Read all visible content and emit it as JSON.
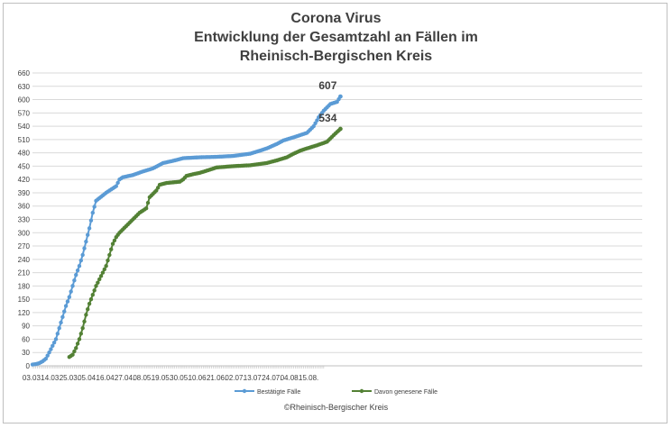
{
  "chart_data": {
    "type": "line",
    "title_lines": [
      "Corona Virus",
      "Entwicklung der Gesamtzahl an Fällen im",
      "Rheinisch-Bergischen Kreis"
    ],
    "y_ticks": [
      0,
      30,
      60,
      90,
      120,
      150,
      180,
      210,
      240,
      270,
      300,
      330,
      360,
      390,
      420,
      450,
      480,
      510,
      540,
      570,
      600,
      630,
      660
    ],
    "ylim": [
      0,
      660
    ],
    "x_tick_labels": [
      "03.03.",
      "14.03.",
      "25.03.",
      "05.04.",
      "16.04.",
      "27.04.",
      "08.05.",
      "19.05.",
      "30.05.",
      "10.06.",
      "21.06.",
      "02.07.",
      "13.07.",
      "24.07.",
      "04.08.",
      "15.08."
    ],
    "x_tick_interval_days": 11,
    "x_day_count": 174,
    "grid": "horizontal",
    "legend_position": "bottom",
    "series": [
      {
        "name": "Bestätigte Fälle",
        "color": "#5b9bd5",
        "end_label": "607",
        "points": [
          [
            0,
            3
          ],
          [
            2,
            4
          ],
          [
            4,
            6
          ],
          [
            6,
            10
          ],
          [
            8,
            16
          ],
          [
            10,
            30
          ],
          [
            12,
            45
          ],
          [
            14,
            60
          ],
          [
            16,
            85
          ],
          [
            18,
            110
          ],
          [
            20,
            135
          ],
          [
            22,
            155
          ],
          [
            24,
            180
          ],
          [
            26,
            205
          ],
          [
            28,
            225
          ],
          [
            30,
            250
          ],
          [
            32,
            280
          ],
          [
            34,
            310
          ],
          [
            36,
            345
          ],
          [
            38,
            372
          ],
          [
            40,
            378
          ],
          [
            44,
            390
          ],
          [
            48,
            400
          ],
          [
            50,
            405
          ],
          [
            52,
            420
          ],
          [
            54,
            425
          ],
          [
            60,
            430
          ],
          [
            66,
            438
          ],
          [
            72,
            445
          ],
          [
            78,
            457
          ],
          [
            84,
            462
          ],
          [
            90,
            468
          ],
          [
            100,
            470
          ],
          [
            110,
            471
          ],
          [
            120,
            473
          ],
          [
            130,
            478
          ],
          [
            136,
            485
          ],
          [
            140,
            490
          ],
          [
            146,
            500
          ],
          [
            150,
            508
          ],
          [
            156,
            515
          ],
          [
            160,
            520
          ],
          [
            164,
            525
          ],
          [
            168,
            540
          ],
          [
            171,
            560
          ],
          [
            174,
            575
          ],
          [
            178,
            590
          ],
          [
            182,
            595
          ],
          [
            184,
            607
          ]
        ]
      },
      {
        "name": "Davon genesene Fälle",
        "color": "#538135",
        "end_label": "534",
        "points": [
          [
            22,
            20
          ],
          [
            24,
            25
          ],
          [
            26,
            40
          ],
          [
            28,
            60
          ],
          [
            30,
            85
          ],
          [
            32,
            115
          ],
          [
            34,
            140
          ],
          [
            36,
            160
          ],
          [
            38,
            180
          ],
          [
            40,
            195
          ],
          [
            42,
            210
          ],
          [
            44,
            225
          ],
          [
            46,
            250
          ],
          [
            48,
            275
          ],
          [
            50,
            290
          ],
          [
            52,
            300
          ],
          [
            56,
            315
          ],
          [
            60,
            330
          ],
          [
            64,
            345
          ],
          [
            68,
            355
          ],
          [
            70,
            380
          ],
          [
            74,
            395
          ],
          [
            76,
            408
          ],
          [
            80,
            412
          ],
          [
            88,
            415
          ],
          [
            90,
            420
          ],
          [
            92,
            428
          ],
          [
            96,
            432
          ],
          [
            100,
            435
          ],
          [
            106,
            442
          ],
          [
            110,
            447
          ],
          [
            120,
            450
          ],
          [
            130,
            452
          ],
          [
            140,
            457
          ],
          [
            146,
            463
          ],
          [
            152,
            470
          ],
          [
            156,
            478
          ],
          [
            160,
            485
          ],
          [
            164,
            490
          ],
          [
            170,
            497
          ],
          [
            176,
            505
          ],
          [
            180,
            520
          ],
          [
            184,
            534
          ]
        ]
      }
    ]
  },
  "copyright": "©Rheinisch-Bergischer Kreis"
}
